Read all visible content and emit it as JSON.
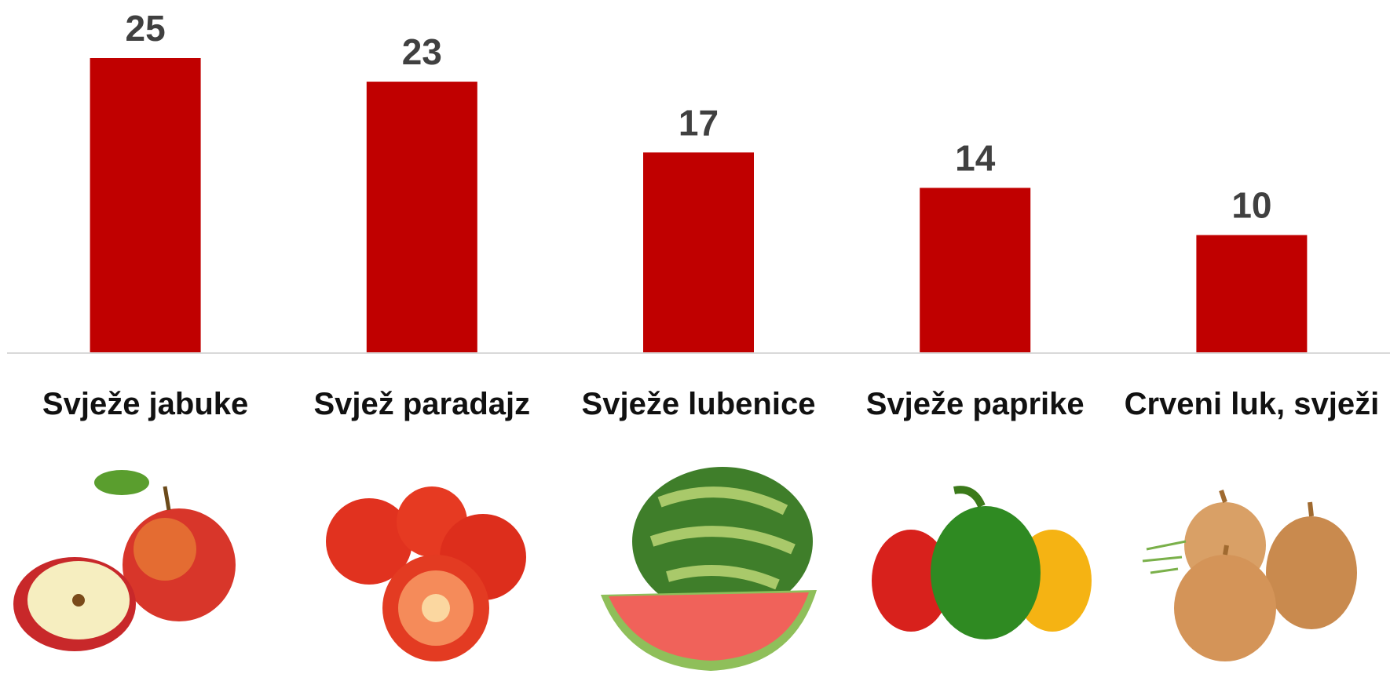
{
  "chart_data": {
    "type": "bar",
    "categories": [
      "Svježe jabuke",
      "Svjež paradajz",
      "Svježe lubenice",
      "Svježe paprike",
      "Crveni luk, svježi"
    ],
    "values": [
      25,
      23,
      17,
      14,
      10
    ],
    "color": "#c00000"
  }
}
